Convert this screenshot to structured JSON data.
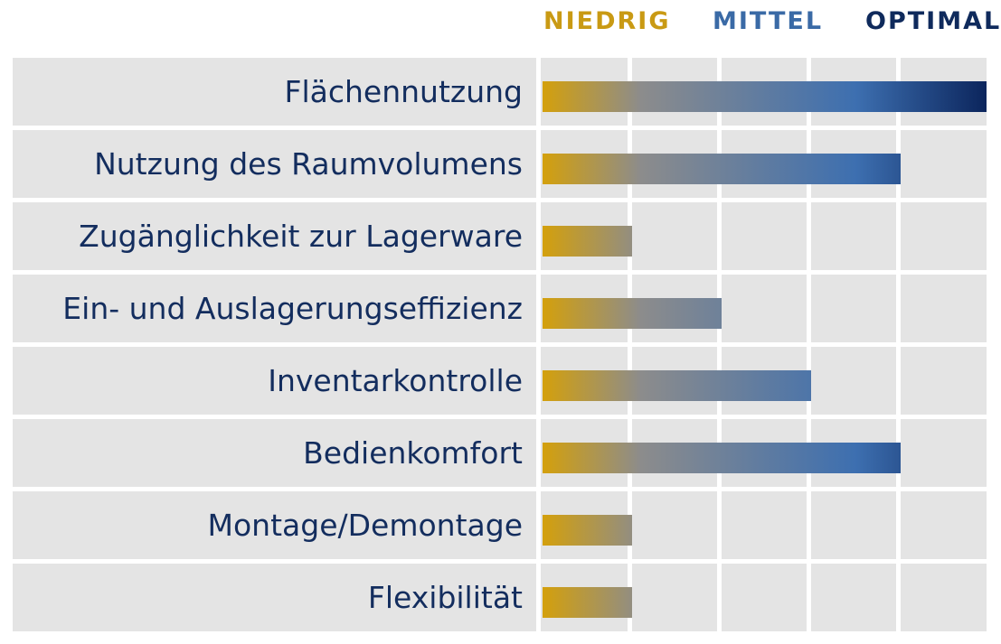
{
  "chart_data": {
    "type": "bar",
    "orientation": "horizontal",
    "scale_labels": [
      {
        "label": "NIEDRIG",
        "color": "#c99a14"
      },
      {
        "label": "MITTEL",
        "color": "#3a6aa6"
      },
      {
        "label": "OPTIMAL",
        "color": "#0f2a5c"
      }
    ],
    "categories": [
      "Flächennutzung",
      "Nutzung des Raumvolumens",
      "Zugänglichkeit zur Lagerware",
      "Ein- und Auslagerungseffizienz",
      "Inventarkontrolle",
      "Bedienkomfort",
      "Montage/Demontage",
      "Flexibilität"
    ],
    "values": [
      5,
      4,
      1,
      2,
      3,
      4,
      1,
      1
    ],
    "xlim": [
      0,
      5
    ],
    "grid": true,
    "gradient_colors": [
      "#d4a00c",
      "#8c8c8c",
      "#3d6fb0",
      "#0a235a"
    ]
  }
}
